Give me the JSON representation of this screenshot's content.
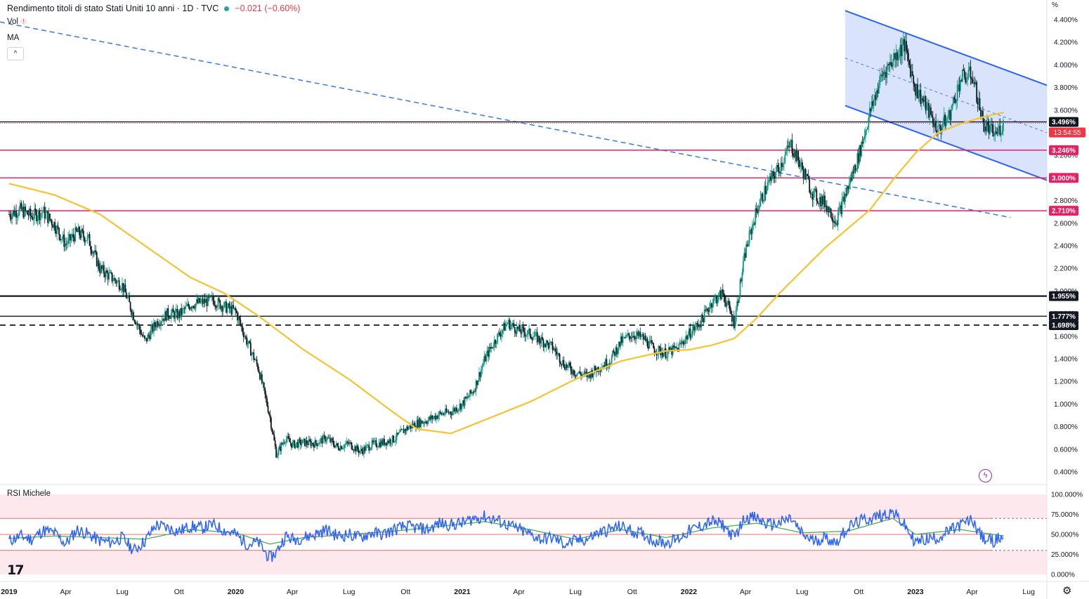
{
  "header": {
    "title": "Rendimento titoli di stato Stati Uniti 10 anni · 1D · TVC",
    "change": "−0.021 (−0.60%)",
    "indicator_vol": "Vol",
    "indicator_ma": "MA",
    "collapse_symbol": "^",
    "rsi_title": "RSI Michele",
    "unit": "%",
    "countdown": "13:54:55"
  },
  "colors": {
    "channel_fill": "#cdd9fb",
    "channel_line": "#2962ff",
    "ma_line": "#f7c330",
    "support_magenta": "#e91e63",
    "candle_up": "#089981",
    "candle_down": "#131722",
    "rsi_line": "#2962ff",
    "rsi_signal": "#4caf50",
    "price_label_bg": "#f23645"
  },
  "chart_data": [
    {
      "type": "candlestick",
      "title": "Rendimento titoli di stato Stati Uniti 10 anni",
      "y_axis_ticks": [
        "4.400%",
        "4.200%",
        "4.000%",
        "3.800%",
        "3.600%",
        "3.400%",
        "3.200%",
        "3.000%",
        "2.800%",
        "2.600%",
        "2.400%",
        "2.200%",
        "2.000%",
        "1.800%",
        "1.600%",
        "1.400%",
        "1.200%",
        "1.000%",
        "0.800%",
        "0.600%",
        "0.400%"
      ],
      "x_axis_ticks": [
        "2019",
        "Apr",
        "Lug",
        "Ott",
        "2020",
        "Apr",
        "Lug",
        "Ott",
        "2021",
        "Apr",
        "Lug",
        "Ott",
        "2022",
        "Apr",
        "Lug",
        "Ott",
        "2023",
        "Apr",
        "Lug"
      ],
      "ylim": [
        0.35,
        4.45
      ],
      "xlim": [
        2018.96,
        2023.58
      ],
      "close_series": {
        "x": [
          2019.0,
          2019.05,
          2019.1,
          2019.15,
          2019.2,
          2019.25,
          2019.3,
          2019.35,
          2019.4,
          2019.45,
          2019.5,
          2019.55,
          2019.6,
          2019.65,
          2019.7,
          2019.75,
          2019.8,
          2019.85,
          2019.9,
          2019.95,
          2020.0,
          2020.05,
          2020.1,
          2020.15,
          2020.18,
          2020.22,
          2020.25,
          2020.3,
          2020.35,
          2020.4,
          2020.45,
          2020.5,
          2020.55,
          2020.6,
          2020.65,
          2020.7,
          2020.75,
          2020.8,
          2020.85,
          2020.9,
          2020.95,
          2021.0,
          2021.05,
          2021.1,
          2021.15,
          2021.2,
          2021.25,
          2021.3,
          2021.35,
          2021.4,
          2021.45,
          2021.5,
          2021.55,
          2021.6,
          2021.65,
          2021.7,
          2021.75,
          2021.8,
          2021.85,
          2021.9,
          2021.95,
          2022.0,
          2022.05,
          2022.1,
          2022.15,
          2022.2,
          2022.25,
          2022.3,
          2022.35,
          2022.4,
          2022.45,
          2022.5,
          2022.55,
          2022.6,
          2022.65,
          2022.7,
          2022.75,
          2022.8,
          2022.85,
          2022.9,
          2022.95,
          2023.0,
          2023.05,
          2023.1,
          2023.15,
          2023.2,
          2023.25,
          2023.3,
          2023.35,
          2023.39
        ],
        "values": [
          2.68,
          2.72,
          2.66,
          2.7,
          2.59,
          2.41,
          2.52,
          2.46,
          2.2,
          2.12,
          2.05,
          1.78,
          1.55,
          1.72,
          1.8,
          1.79,
          1.88,
          1.9,
          1.92,
          1.86,
          1.82,
          1.55,
          1.32,
          0.9,
          0.55,
          0.7,
          0.64,
          0.66,
          0.65,
          0.7,
          0.62,
          0.65,
          0.58,
          0.64,
          0.66,
          0.69,
          0.78,
          0.83,
          0.86,
          0.91,
          0.93,
          1.0,
          1.12,
          1.4,
          1.58,
          1.72,
          1.65,
          1.62,
          1.56,
          1.5,
          1.35,
          1.28,
          1.25,
          1.32,
          1.38,
          1.55,
          1.62,
          1.58,
          1.48,
          1.45,
          1.49,
          1.62,
          1.72,
          1.9,
          1.98,
          1.72,
          2.35,
          2.72,
          2.95,
          3.1,
          3.3,
          3.08,
          2.85,
          2.78,
          2.62,
          2.9,
          3.2,
          3.58,
          3.9,
          4.05,
          4.18,
          3.8,
          3.62,
          3.42,
          3.55,
          3.88,
          3.92,
          3.48,
          3.38,
          3.48
        ]
      },
      "moving_average": {
        "x": [
          2019.0,
          2019.2,
          2019.4,
          2019.6,
          2019.8,
          2019.95,
          2020.1,
          2020.3,
          2020.5,
          2020.7,
          2020.8,
          2020.95,
          2021.1,
          2021.3,
          2021.5,
          2021.7,
          2021.9,
          2022.0,
          2022.1,
          2022.2,
          2022.3,
          2022.4,
          2022.5,
          2022.6,
          2022.7,
          2022.8,
          2022.9,
          2023.0,
          2023.1,
          2023.2,
          2023.3,
          2023.39
        ],
        "values": [
          2.95,
          2.85,
          2.68,
          2.4,
          2.12,
          1.98,
          1.78,
          1.48,
          1.22,
          0.92,
          0.78,
          0.74,
          0.86,
          1.02,
          1.22,
          1.38,
          1.47,
          1.48,
          1.52,
          1.58,
          1.76,
          1.98,
          2.18,
          2.38,
          2.55,
          2.72,
          2.98,
          3.22,
          3.4,
          3.48,
          3.54,
          3.58
        ]
      },
      "horizontal_levels": [
        {
          "value": 3.496,
          "label": "3.496%",
          "style": "price"
        },
        {
          "value": 3.246,
          "label": "3.246%",
          "style": "magenta"
        },
        {
          "value": 3.0,
          "label": "3.000%",
          "style": "magenta"
        },
        {
          "value": 2.71,
          "label": "2.710%",
          "style": "magenta"
        },
        {
          "value": 1.955,
          "label": "1.955%",
          "style": "black-thick"
        },
        {
          "value": 1.777,
          "label": "1.777%",
          "style": "black"
        },
        {
          "value": 1.698,
          "label": "1.698%",
          "style": "black-dashed"
        }
      ],
      "trendline_dashed": {
        "x": [
          2018.96,
          2023.42
        ],
        "values": [
          4.38,
          2.65
        ]
      },
      "channel": {
        "x_start": 2022.69,
        "x_end": 2023.58,
        "upper": [
          4.48,
          3.82
        ],
        "lower": [
          3.64,
          2.98
        ],
        "mid": [
          4.06,
          3.4
        ]
      }
    },
    {
      "type": "line",
      "title": "RSI Michele",
      "y_axis_ticks": [
        "100.000%",
        "75.000%",
        "50.000%",
        "25.000%",
        "0.000%"
      ],
      "ylim": [
        0,
        100
      ],
      "bands": {
        "upper": 70,
        "middle": 50,
        "lower": 30
      },
      "rsi": {
        "x": [
          2019.0,
          2019.05,
          2019.1,
          2019.15,
          2019.2,
          2019.25,
          2019.3,
          2019.35,
          2019.4,
          2019.45,
          2019.5,
          2019.55,
          2019.6,
          2019.65,
          2019.7,
          2019.75,
          2019.8,
          2019.85,
          2019.9,
          2019.95,
          2020.0,
          2020.05,
          2020.1,
          2020.15,
          2020.18,
          2020.22,
          2020.25,
          2020.3,
          2020.35,
          2020.4,
          2020.45,
          2020.5,
          2020.55,
          2020.6,
          2020.65,
          2020.7,
          2020.75,
          2020.8,
          2020.85,
          2020.9,
          2020.95,
          2021.0,
          2021.05,
          2021.1,
          2021.15,
          2021.2,
          2021.25,
          2021.3,
          2021.35,
          2021.4,
          2021.45,
          2021.5,
          2021.55,
          2021.6,
          2021.65,
          2021.7,
          2021.75,
          2021.8,
          2021.85,
          2021.9,
          2021.95,
          2022.0,
          2022.05,
          2022.1,
          2022.15,
          2022.2,
          2022.25,
          2022.3,
          2022.35,
          2022.4,
          2022.45,
          2022.5,
          2022.55,
          2022.6,
          2022.65,
          2022.7,
          2022.75,
          2022.8,
          2022.85,
          2022.9,
          2022.95,
          2023.0,
          2023.05,
          2023.1,
          2023.15,
          2023.2,
          2023.25,
          2023.3,
          2023.35,
          2023.39
        ],
        "values": [
          42,
          48,
          44,
          55,
          52,
          38,
          56,
          50,
          42,
          40,
          46,
          30,
          42,
          62,
          58,
          54,
          60,
          58,
          62,
          55,
          50,
          38,
          40,
          20,
          28,
          48,
          44,
          46,
          50,
          56,
          48,
          50,
          46,
          52,
          50,
          56,
          60,
          58,
          56,
          64,
          62,
          64,
          70,
          72,
          68,
          62,
          56,
          50,
          44,
          46,
          38,
          42,
          44,
          52,
          56,
          60,
          54,
          50,
          42,
          40,
          44,
          54,
          60,
          66,
          62,
          46,
          72,
          70,
          62,
          64,
          70,
          50,
          42,
          46,
          40,
          58,
          66,
          70,
          74,
          78,
          62,
          40,
          44,
          46,
          54,
          62,
          68,
          44,
          42,
          48
        ]
      },
      "signal": {
        "x": [
          2019.0,
          2019.2,
          2019.4,
          2019.6,
          2019.8,
          2020.0,
          2020.15,
          2020.3,
          2020.5,
          2020.7,
          2020.9,
          2021.1,
          2021.3,
          2021.5,
          2021.7,
          2021.9,
          2022.1,
          2022.3,
          2022.5,
          2022.7,
          2022.9,
          2023.0,
          2023.2,
          2023.39
        ],
        "values": [
          45,
          48,
          46,
          44,
          56,
          52,
          38,
          46,
          50,
          54,
          60,
          66,
          56,
          44,
          56,
          46,
          58,
          64,
          52,
          54,
          70,
          50,
          56,
          48
        ]
      }
    }
  ]
}
